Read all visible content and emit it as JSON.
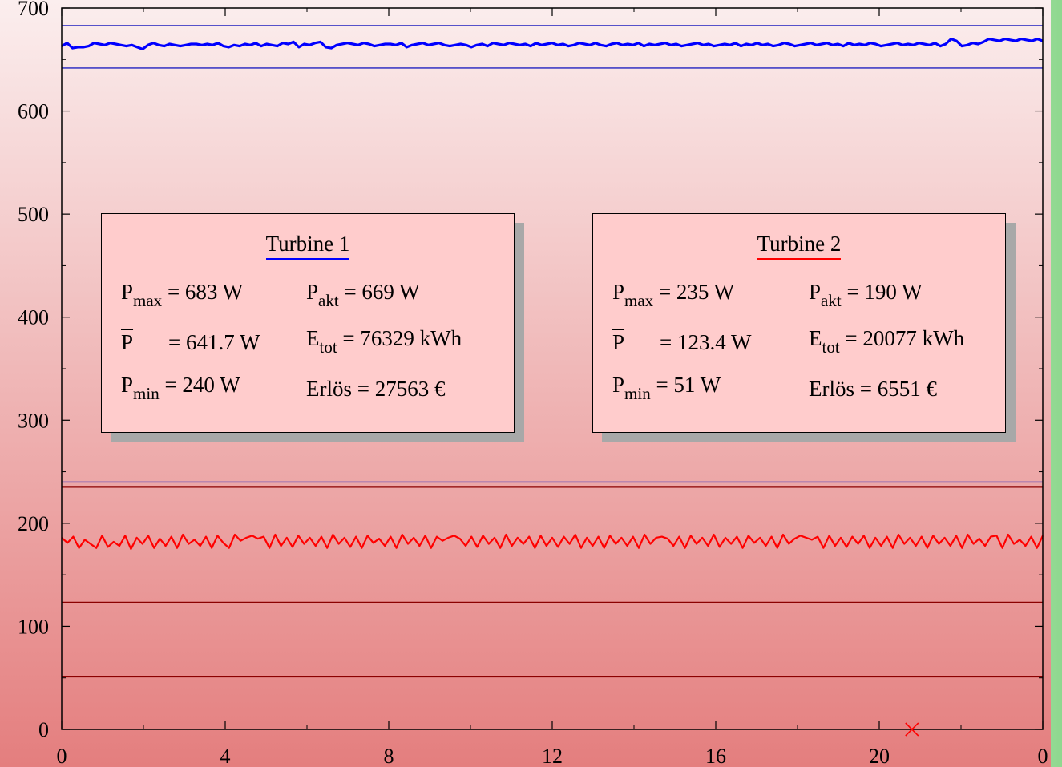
{
  "chart_data": {
    "type": "line",
    "xlim": [
      0,
      24
    ],
    "ylim": [
      0,
      700
    ],
    "x_ticks": [
      "0",
      "4",
      "8",
      "12",
      "16",
      "20",
      "0"
    ],
    "y_ticks": [
      "0",
      "100",
      "200",
      "300",
      "400",
      "500",
      "600",
      "700"
    ],
    "grid": false,
    "series": [
      {
        "color": "#0000ff",
        "description_level": "approx. 660-670 W, slight rise near the end",
        "values": [
          663,
          666,
          661,
          662,
          662,
          663,
          666,
          665,
          664,
          666,
          665,
          664,
          663,
          664,
          662,
          660,
          664,
          666,
          664,
          663,
          665,
          664,
          663,
          664,
          665,
          665,
          664,
          665,
          664,
          666,
          663,
          662,
          664,
          663,
          665,
          664,
          666,
          663,
          665,
          664,
          663,
          666,
          665,
          667,
          662,
          665,
          664,
          666,
          667,
          662,
          661,
          664,
          665,
          666,
          665,
          664,
          666,
          665,
          663,
          664,
          665,
          665,
          664,
          666,
          662,
          664,
          665,
          666,
          664,
          665,
          666,
          664,
          663,
          664,
          665,
          664,
          662,
          664,
          665,
          663,
          666,
          665,
          664,
          666,
          665,
          664,
          665,
          663,
          666,
          664,
          665,
          666,
          664,
          665,
          663,
          664,
          666,
          665,
          664,
          666,
          664,
          663,
          665,
          666,
          664,
          665,
          664,
          666,
          663,
          665,
          664,
          665,
          666,
          664,
          665,
          663,
          664,
          665,
          666,
          664,
          665,
          663,
          664,
          665,
          664,
          666,
          663,
          665,
          664,
          666,
          664,
          665,
          663,
          664,
          666,
          665,
          663,
          664,
          665,
          666,
          664,
          665,
          666,
          664,
          665,
          663,
          666,
          664,
          665,
          664,
          666,
          665,
          663,
          664,
          665,
          666,
          664,
          665,
          664,
          666,
          665,
          664,
          666,
          663,
          665,
          670,
          668,
          663,
          664,
          666,
          665,
          667,
          670,
          669,
          668,
          670,
          669,
          668,
          670,
          669,
          668,
          670,
          668
        ]
      },
      {
        "color": "#ff0000",
        "values": [
          186,
          181,
          187,
          176,
          184,
          180,
          176,
          188,
          177,
          182,
          178,
          188,
          175,
          186,
          180,
          188,
          176,
          185,
          178,
          187,
          176,
          189,
          180,
          184,
          178,
          187,
          176,
          188,
          181,
          176,
          189,
          183,
          186,
          188,
          185,
          187,
          176,
          189,
          178,
          186,
          177,
          188,
          180,
          186,
          178,
          187,
          176,
          189,
          180,
          186,
          177,
          187,
          176,
          188,
          181,
          185,
          178,
          187,
          176,
          189,
          180,
          186,
          178,
          188,
          176,
          187,
          183,
          186,
          188,
          185,
          178,
          187,
          177,
          188,
          180,
          186,
          176,
          189,
          178,
          186,
          180,
          187,
          176,
          188,
          178,
          186,
          177,
          187,
          180,
          189,
          176,
          186,
          178,
          187,
          176,
          188,
          180,
          186,
          178,
          187,
          176,
          189,
          180,
          186,
          187,
          185,
          178,
          187,
          176,
          188,
          180,
          186,
          178,
          189,
          177,
          186,
          180,
          187,
          176,
          188,
          181,
          186,
          178,
          187,
          176,
          189,
          180,
          185,
          188,
          186,
          184,
          187,
          176,
          188,
          178,
          186,
          177,
          187,
          180,
          188,
          176,
          186,
          178,
          187,
          176,
          189,
          180,
          186,
          178,
          187,
          176,
          188,
          180,
          186,
          178,
          188,
          176,
          189,
          180,
          185,
          178,
          187,
          188,
          176,
          189,
          180,
          184,
          178,
          187,
          176,
          188
        ]
      }
    ],
    "hlines": [
      {
        "y": 683,
        "color": "#2020c0"
      },
      {
        "y": 641.7,
        "color": "#2020c0"
      },
      {
        "y": 240,
        "color": "#2020c0"
      },
      {
        "y": 235,
        "color": "#8b0000"
      },
      {
        "y": 123.4,
        "color": "#8b0000"
      },
      {
        "y": 51,
        "color": "#8b0000"
      }
    ],
    "marker": {
      "x": 20.8,
      "y": 0,
      "symbol": "×",
      "color": "#ff0000"
    }
  },
  "turbine1": {
    "title": "Turbine 1",
    "title_underline_color": "#0000ff",
    "pmax_var": "P",
    "pmax_sub": "max",
    "pmax_val": "= 683 W",
    "pakt_var": "P",
    "pakt_sub": "akt",
    "pakt_val": "= 669 W",
    "pmean_var": "P",
    "pmean_val": "= 641.7 W",
    "etot_var": "E",
    "etot_sub": "tot",
    "etot_val": "= 76329 kWh",
    "pmin_var": "P",
    "pmin_sub": "min",
    "pmin_val": "= 240 W",
    "erloes": "Erlös = 27563 €"
  },
  "turbine2": {
    "title": "Turbine 2",
    "title_underline_color": "#ff0000",
    "pmax_var": "P",
    "pmax_sub": "max",
    "pmax_val": "= 235 W",
    "pakt_var": "P",
    "pakt_sub": "akt",
    "pakt_val": "= 190 W",
    "pmean_var": "P",
    "pmean_val": "= 123.4 W",
    "etot_var": "E",
    "etot_sub": "tot",
    "etot_val": "= 20077 kWh",
    "pmin_var": "P",
    "pmin_sub": "min",
    "pmin_val": "= 51 W",
    "erloes": "Erlös = 6551 €"
  }
}
